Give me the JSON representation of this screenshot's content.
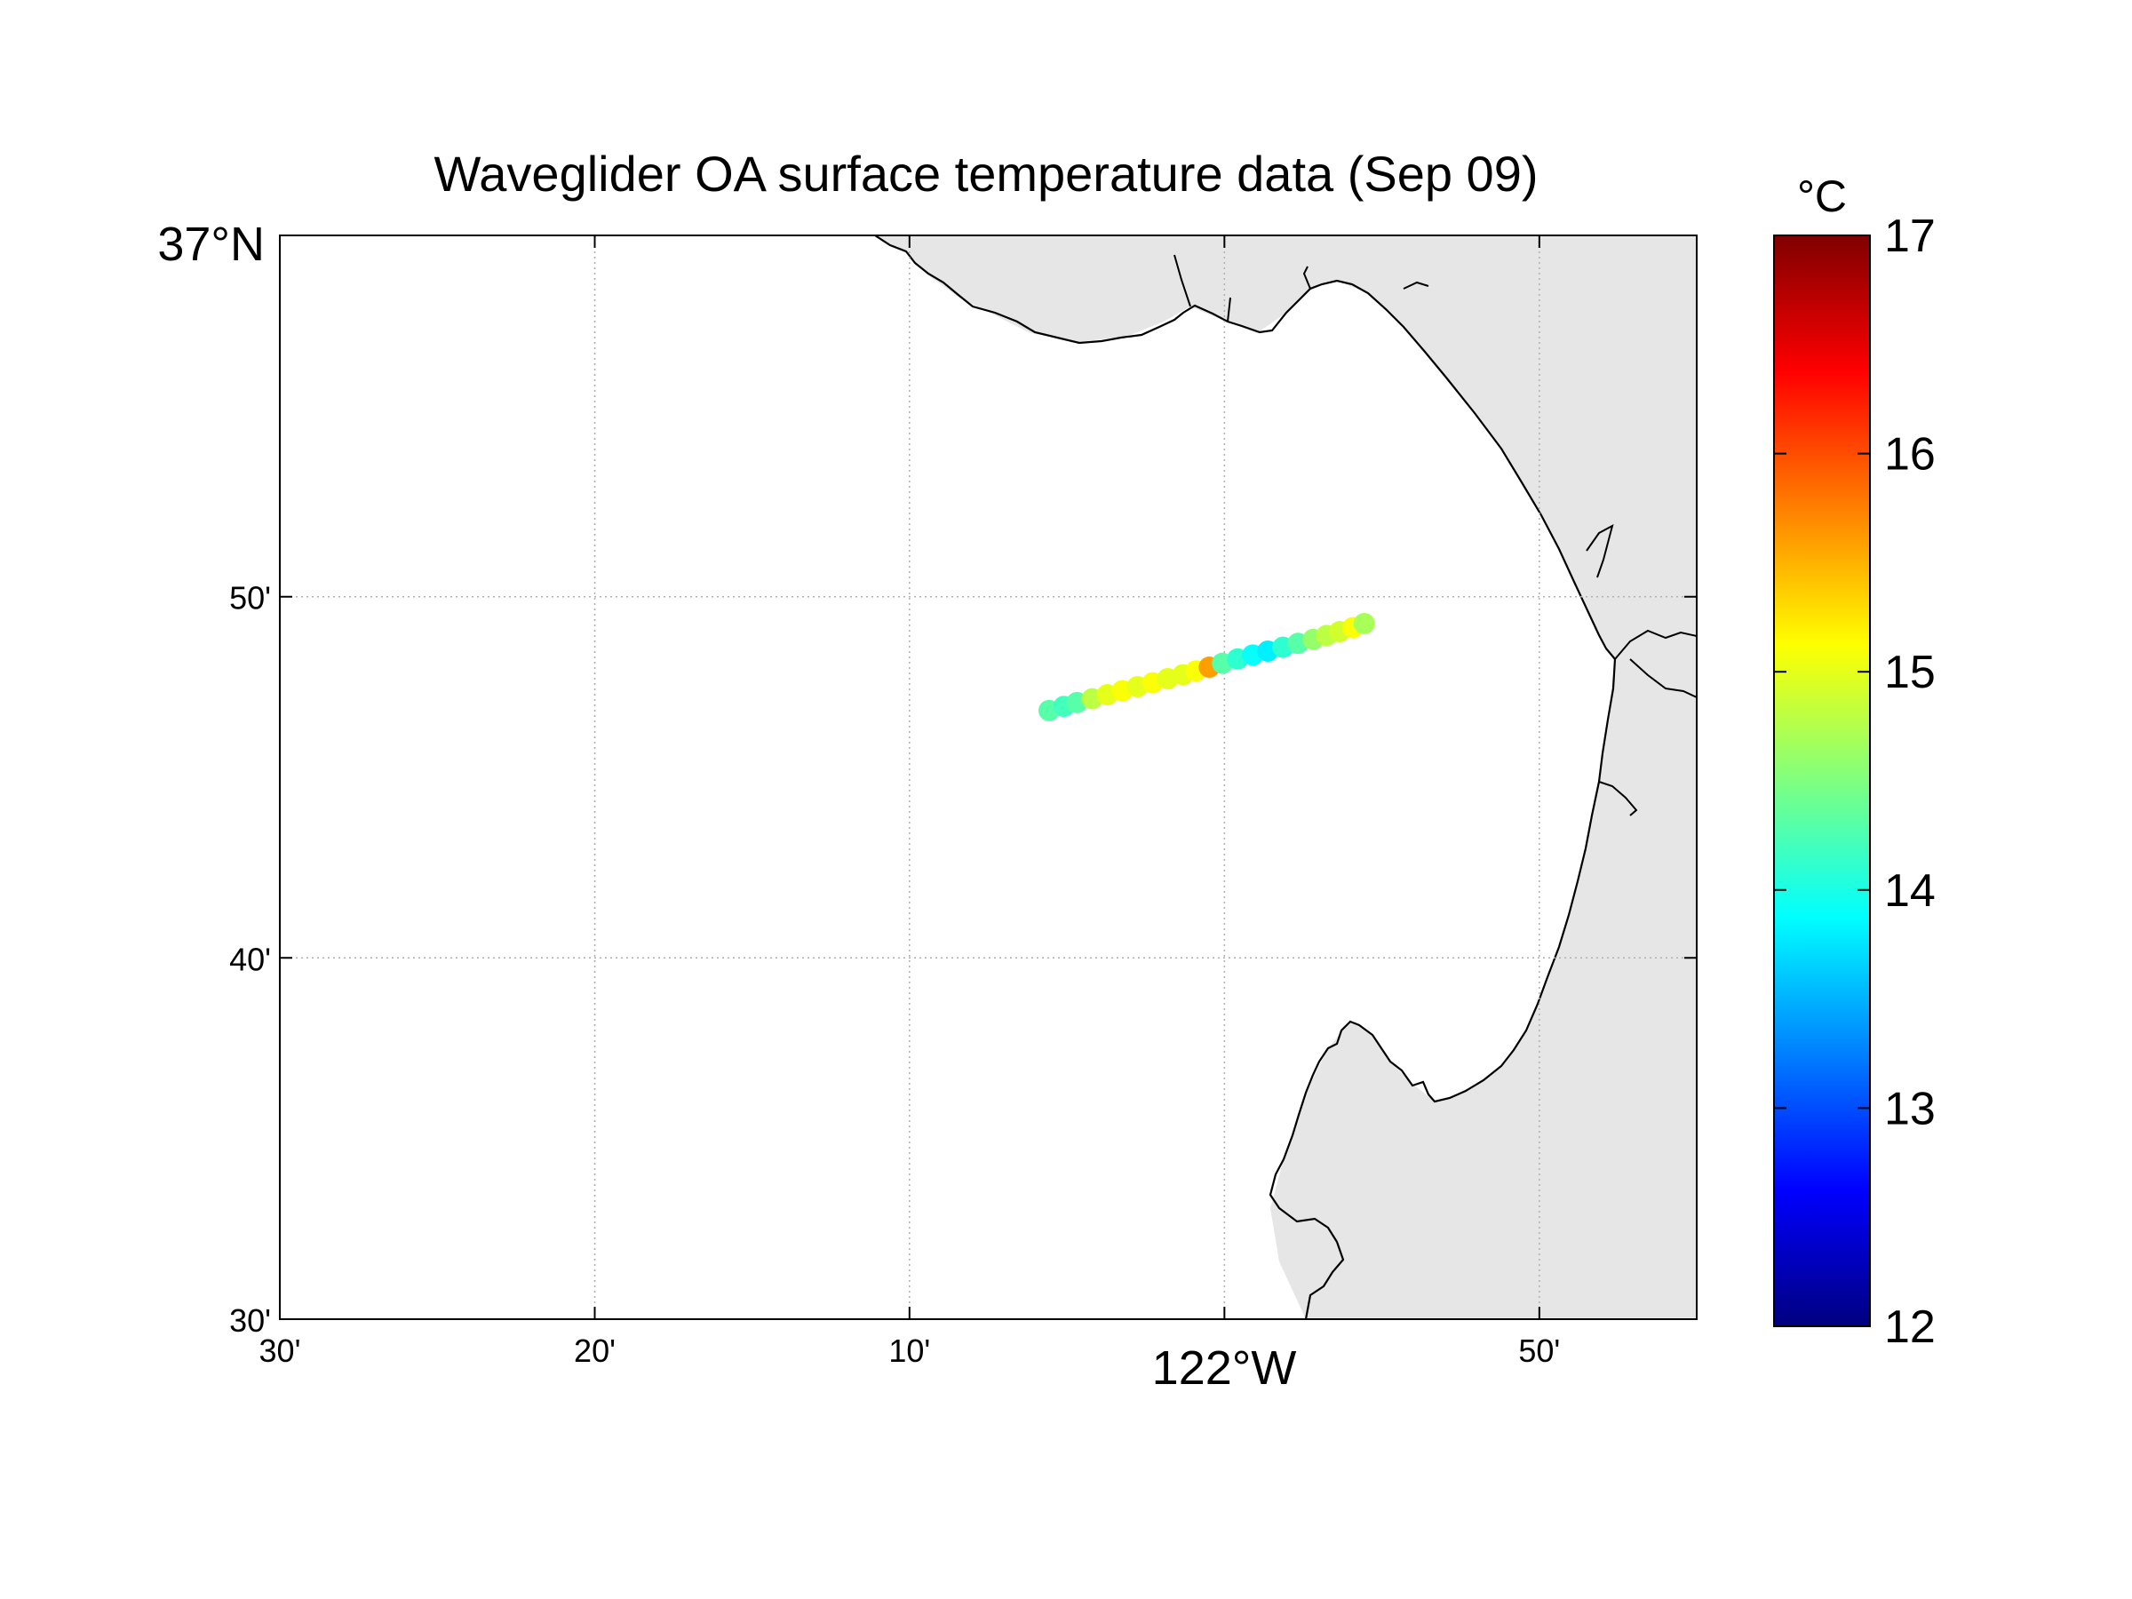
{
  "figure": {
    "title": "Waveglider OA surface temperature data (Sep 09)"
  },
  "map": {
    "x_ticks": [
      {
        "lon": -122.5,
        "label": "30'"
      },
      {
        "lon": -122.3333,
        "label": "20'"
      },
      {
        "lon": -122.1667,
        "label": "10'"
      },
      {
        "lon": -122.0,
        "label": ""
      },
      {
        "lon": -121.8333,
        "label": "50'"
      }
    ],
    "x_major_label": "122°W",
    "y_ticks": [
      {
        "lat": 36.5,
        "label": "30'"
      },
      {
        "lat": 36.6667,
        "label": "40'"
      },
      {
        "lat": 36.8333,
        "label": "50'"
      }
    ],
    "y_major_label": "37°N",
    "lon_range": [
      -122.5,
      -121.75
    ],
    "lat_range": [
      36.5,
      37.0
    ],
    "grid": true,
    "colors": {
      "land": "#e6e6e6",
      "coastline": "#000000",
      "grid": "#b0b0b0"
    }
  },
  "chart_data": {
    "type": "scatter",
    "title": "Waveglider OA surface temperature data (Sep 09)",
    "xlabel": "",
    "ylabel": "",
    "xlim": [
      -122.5,
      -121.75
    ],
    "ylim": [
      36.5,
      37.0
    ],
    "track": [
      {
        "lon": -122.0928,
        "lat": 36.7808,
        "temp": 14.3
      },
      {
        "lon": -122.085,
        "lat": 36.7827,
        "temp": 14.2
      },
      {
        "lon": -122.078,
        "lat": 36.7845,
        "temp": 14.3
      },
      {
        "lon": -122.07,
        "lat": 36.7862,
        "temp": 14.8
      },
      {
        "lon": -122.062,
        "lat": 36.7881,
        "temp": 15.0
      },
      {
        "lon": -122.054,
        "lat": 36.7899,
        "temp": 15.1
      },
      {
        "lon": -122.046,
        "lat": 36.7918,
        "temp": 15.0
      },
      {
        "lon": -122.038,
        "lat": 36.7936,
        "temp": 15.1
      },
      {
        "lon": -122.03,
        "lat": 36.7955,
        "temp": 15.0
      },
      {
        "lon": -122.022,
        "lat": 36.7973,
        "temp": 15.0
      },
      {
        "lon": -122.015,
        "lat": 36.7991,
        "temp": 15.1
      },
      {
        "lon": -122.008,
        "lat": 36.8008,
        "temp": 15.6
      },
      {
        "lon": -122.001,
        "lat": 36.8026,
        "temp": 14.3
      },
      {
        "lon": -121.993,
        "lat": 36.8046,
        "temp": 14.1
      },
      {
        "lon": -121.985,
        "lat": 36.8064,
        "temp": 13.9
      },
      {
        "lon": -121.977,
        "lat": 36.8082,
        "temp": 13.8
      },
      {
        "lon": -121.969,
        "lat": 36.81,
        "temp": 14.1
      },
      {
        "lon": -121.961,
        "lat": 36.8118,
        "temp": 14.3
      },
      {
        "lon": -121.953,
        "lat": 36.8136,
        "temp": 14.6
      },
      {
        "lon": -121.946,
        "lat": 36.8154,
        "temp": 14.8
      },
      {
        "lon": -121.939,
        "lat": 36.8172,
        "temp": 14.9
      },
      {
        "lon": -121.932,
        "lat": 36.819,
        "temp": 15.1
      },
      {
        "lon": -121.926,
        "lat": 36.8209,
        "temp": 14.7
      }
    ],
    "colorbar": {
      "label": "°C",
      "range": [
        12,
        17
      ],
      "ticks": [
        12,
        13,
        14,
        15,
        16,
        17
      ],
      "tick_labels": [
        "12",
        "13",
        "14",
        "15",
        "16",
        "17"
      ],
      "colormap": "jet"
    }
  }
}
